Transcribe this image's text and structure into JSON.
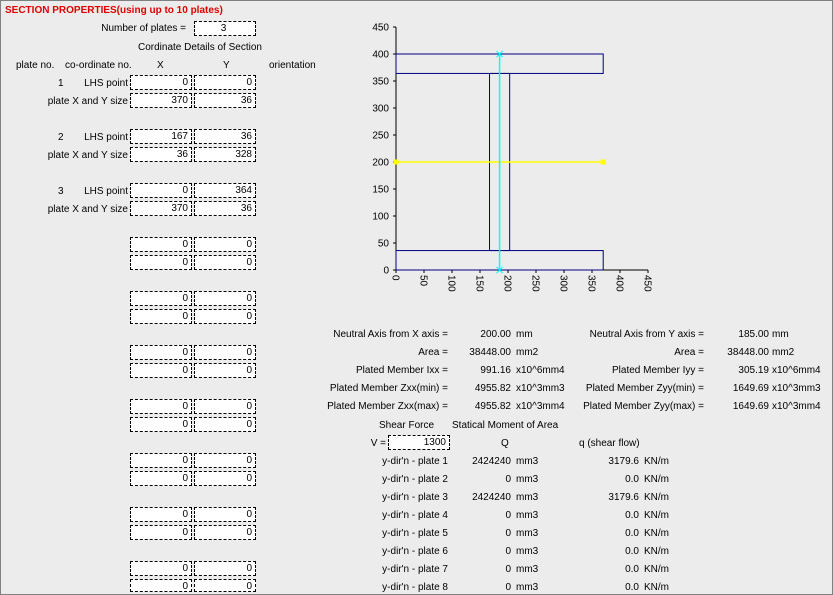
{
  "title": "SECTION PROPERTIES(using up to 10 plates)",
  "num_plates_label": "Number of plates =",
  "num_plates": "3",
  "coord_heading": "Cordinate Details of Section",
  "headers": {
    "plate_no": "plate no.",
    "coord_no": "co-ordinate no.",
    "x": "X",
    "y": "Y",
    "orientation": "orientation"
  },
  "plates": [
    {
      "no": "1",
      "lhs_label": "LHS point",
      "size_label": "plate X and Y size",
      "lhs_x": "0",
      "lhs_y": "0",
      "size_x": "370",
      "size_y": "36"
    },
    {
      "no": "2",
      "lhs_label": "LHS point",
      "size_label": "plate X and Y size",
      "lhs_x": "167",
      "lhs_y": "36",
      "size_x": "36",
      "size_y": "328"
    },
    {
      "no": "3",
      "lhs_label": "LHS point",
      "size_label": "plate X and Y size",
      "lhs_x": "0",
      "lhs_y": "364",
      "size_x": "370",
      "size_y": "36"
    }
  ],
  "empty_value": "0",
  "chart_data": {
    "type": "scatter",
    "xlim": [
      0,
      450
    ],
    "ylim": [
      0,
      450
    ],
    "xticks": [
      "0",
      "50",
      "100",
      "150",
      "200",
      "250",
      "300",
      "350",
      "400",
      "450"
    ],
    "yticks": [
      "0",
      "50",
      "100",
      "150",
      "200",
      "250",
      "300",
      "350",
      "400",
      "450"
    ],
    "plates": [
      {
        "x": 0,
        "y": 0,
        "w": 370,
        "h": 36
      },
      {
        "x": 167,
        "y": 36,
        "w": 36,
        "h": 328
      },
      {
        "x": 0,
        "y": 364,
        "w": 370,
        "h": 36
      }
    ],
    "neutral_axis_x": {
      "y": 200,
      "x_from": 0,
      "x_to": 370
    },
    "neutral_axis_y": {
      "x": 185,
      "y_from": 0,
      "y_to": 400
    },
    "colors": {
      "outline": "#000080",
      "neutral_x": "#ffff00",
      "neutral_y": "#00ffff"
    }
  },
  "results": [
    {
      "label": "Neutral Axis from X axis =",
      "value": "200.00",
      "unit": "mm",
      "label2": "Neutral Axis from Y axis =",
      "value2": "185.00",
      "unit2": "mm"
    },
    {
      "label": "Area =",
      "value": "38448.00",
      "unit": "mm2",
      "label2": "Area =",
      "value2": "38448.00",
      "unit2": "mm2"
    },
    {
      "label": "Plated Member Ixx =",
      "value": "991.16",
      "unit": "x10^6mm4",
      "label2": "Plated Member Iyy =",
      "value2": "305.19",
      "unit2": "x10^6mm4"
    },
    {
      "label": "Plated Member Zxx(min) =",
      "value": "4955.82",
      "unit": "x10^3mm3",
      "label2": "Plated Member Zyy(min) =",
      "value2": "1649.69",
      "unit2": "x10^3mm3"
    },
    {
      "label": "Plated Member Zxx(max) =",
      "value": "4955.82",
      "unit": "x10^3mm4",
      "label2": "Plated Member Zyy(max) =",
      "value2": "1649.69",
      "unit2": "x10^3mm4"
    }
  ],
  "shear": {
    "header1": "Shear Force",
    "header2": "Statical Moment of Area",
    "v_label": "V =",
    "v_value": "1300",
    "q_label": "Q",
    "flow_label": "q (shear flow)",
    "rows": [
      {
        "label": "y-dir'n - plate 1",
        "q": "2424240",
        "q_unit": "mm3",
        "flow": "3179.6",
        "flow_unit": "KN/m"
      },
      {
        "label": "y-dir'n - plate 2",
        "q": "0",
        "q_unit": "mm3",
        "flow": "0.0",
        "flow_unit": "KN/m"
      },
      {
        "label": "y-dir'n - plate 3",
        "q": "2424240",
        "q_unit": "mm3",
        "flow": "3179.6",
        "flow_unit": "KN/m"
      },
      {
        "label": "y-dir'n - plate 4",
        "q": "0",
        "q_unit": "mm3",
        "flow": "0.0",
        "flow_unit": "KN/m"
      },
      {
        "label": "y-dir'n - plate 5",
        "q": "0",
        "q_unit": "mm3",
        "flow": "0.0",
        "flow_unit": "KN/m"
      },
      {
        "label": "y-dir'n - plate 6",
        "q": "0",
        "q_unit": "mm3",
        "flow": "0.0",
        "flow_unit": "KN/m"
      },
      {
        "label": "y-dir'n - plate 7",
        "q": "0",
        "q_unit": "mm3",
        "flow": "0.0",
        "flow_unit": "KN/m"
      },
      {
        "label": "y-dir'n - plate 8",
        "q": "0",
        "q_unit": "mm3",
        "flow": "0.0",
        "flow_unit": "KN/m"
      }
    ]
  }
}
